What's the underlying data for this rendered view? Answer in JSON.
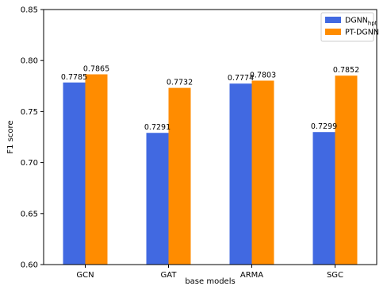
{
  "chart_data": {
    "type": "bar",
    "title": "",
    "xlabel": "base models",
    "ylabel": "F1 score",
    "categories": [
      "GCN",
      "GAT",
      "ARMA",
      "SGC"
    ],
    "ylim": [
      0.6,
      0.85
    ],
    "yticks": [
      "0.60",
      "0.65",
      "0.70",
      "0.75",
      "0.80",
      "0.85"
    ],
    "grid": false,
    "legend_position": "top-right",
    "series": [
      {
        "name": "DGNN",
        "name_subscript": "hpt",
        "color": "#4169E1",
        "values": [
          0.7785,
          0.7291,
          0.7774,
          0.7299
        ],
        "labels": [
          "0.7785",
          "0.7291",
          "0.7774",
          "0.7299"
        ]
      },
      {
        "name": "PT-DGNN",
        "color": "#FF8C00",
        "values": [
          0.7865,
          0.7732,
          0.7803,
          0.7852
        ],
        "labels": [
          "0.7865",
          "0.7732",
          "0.7803",
          "0.7852"
        ]
      }
    ]
  }
}
